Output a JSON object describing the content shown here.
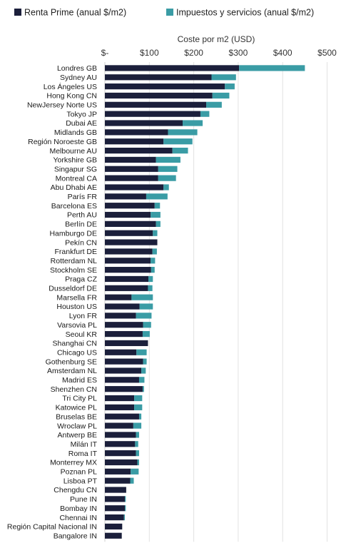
{
  "chart_data": {
    "type": "bar",
    "orientation": "horizontal",
    "stacked": true,
    "xlabel": "Coste por m2 (USD)",
    "xlim": [
      0,
      500
    ],
    "x_ticks": [
      0,
      100,
      200,
      300,
      400,
      500
    ],
    "x_tick_labels": [
      "$-",
      "$100",
      "$200",
      "$300",
      "$400",
      "$500"
    ],
    "grid": true,
    "legend_position": "top",
    "categories": [
      "Londres GB",
      "Sydney AU",
      "Los Ángeles US",
      "Hong Kong CN",
      "NewJersey Norte US",
      "Tokyo JP",
      "Dubai AE",
      "Midlands GB",
      "Región Noroeste GB",
      "Melbourne AU",
      "Yorkshire GB",
      "Singapur SG",
      "Montreal CA",
      "Abu Dhabi AE",
      "París FR",
      "Barcelona ES",
      "Perth AU",
      "Berlín DE",
      "Hamburgo DE",
      "Pekín CN",
      "Frankfurt DE",
      "Rotterdam NL",
      "Stockholm SE",
      "Praga CZ",
      "Dusseldorf DE",
      "Marsella FR",
      "Houston US",
      "Lyon FR",
      "Varsovia PL",
      "Seoul KR",
      "Shanghai CN",
      "Chicago US",
      "Gothenburg SE",
      "Amsterdam NL",
      "Madrid ES",
      "Shenzhen CN",
      "Tri City PL",
      "Katowice PL",
      "Bruselas BE",
      "Wroclaw PL",
      "Antwerp BE",
      "Milán IT",
      "Roma IT",
      "Monterrey MX",
      "Poznan PL",
      "Lisboa PT",
      "Chengdu CN",
      "Pune IN",
      "Bombay IN",
      "Chennai IN",
      "Región Capital Nacional IN",
      "Bangalore IN"
    ],
    "series": [
      {
        "name": "Renta Prime (anual $/m2)",
        "color": "#1b1f3b",
        "values": [
          302,
          240,
          270,
          242,
          228,
          215,
          175,
          142,
          132,
          152,
          115,
          120,
          120,
          132,
          93,
          112,
          103,
          115,
          108,
          118,
          107,
          103,
          104,
          98,
          97,
          60,
          78,
          70,
          86,
          85,
          97,
          71,
          86,
          82,
          77,
          85,
          66,
          66,
          77,
          64,
          70,
          68,
          70,
          73,
          58,
          57,
          48,
          45,
          45,
          43,
          39,
          38
        ]
      },
      {
        "name": "Impuestos y servicios (anual $/m2)",
        "color": "#3a9ca5",
        "values": [
          148,
          55,
          22,
          38,
          35,
          20,
          45,
          66,
          65,
          35,
          55,
          43,
          40,
          12,
          48,
          12,
          22,
          10,
          10,
          0,
          10,
          10,
          8,
          10,
          10,
          48,
          30,
          35,
          18,
          16,
          0,
          23,
          8,
          10,
          12,
          3,
          18,
          18,
          5,
          18,
          7,
          7,
          7,
          4,
          18,
          8,
          0,
          2,
          2,
          2,
          0,
          0
        ]
      }
    ]
  }
}
